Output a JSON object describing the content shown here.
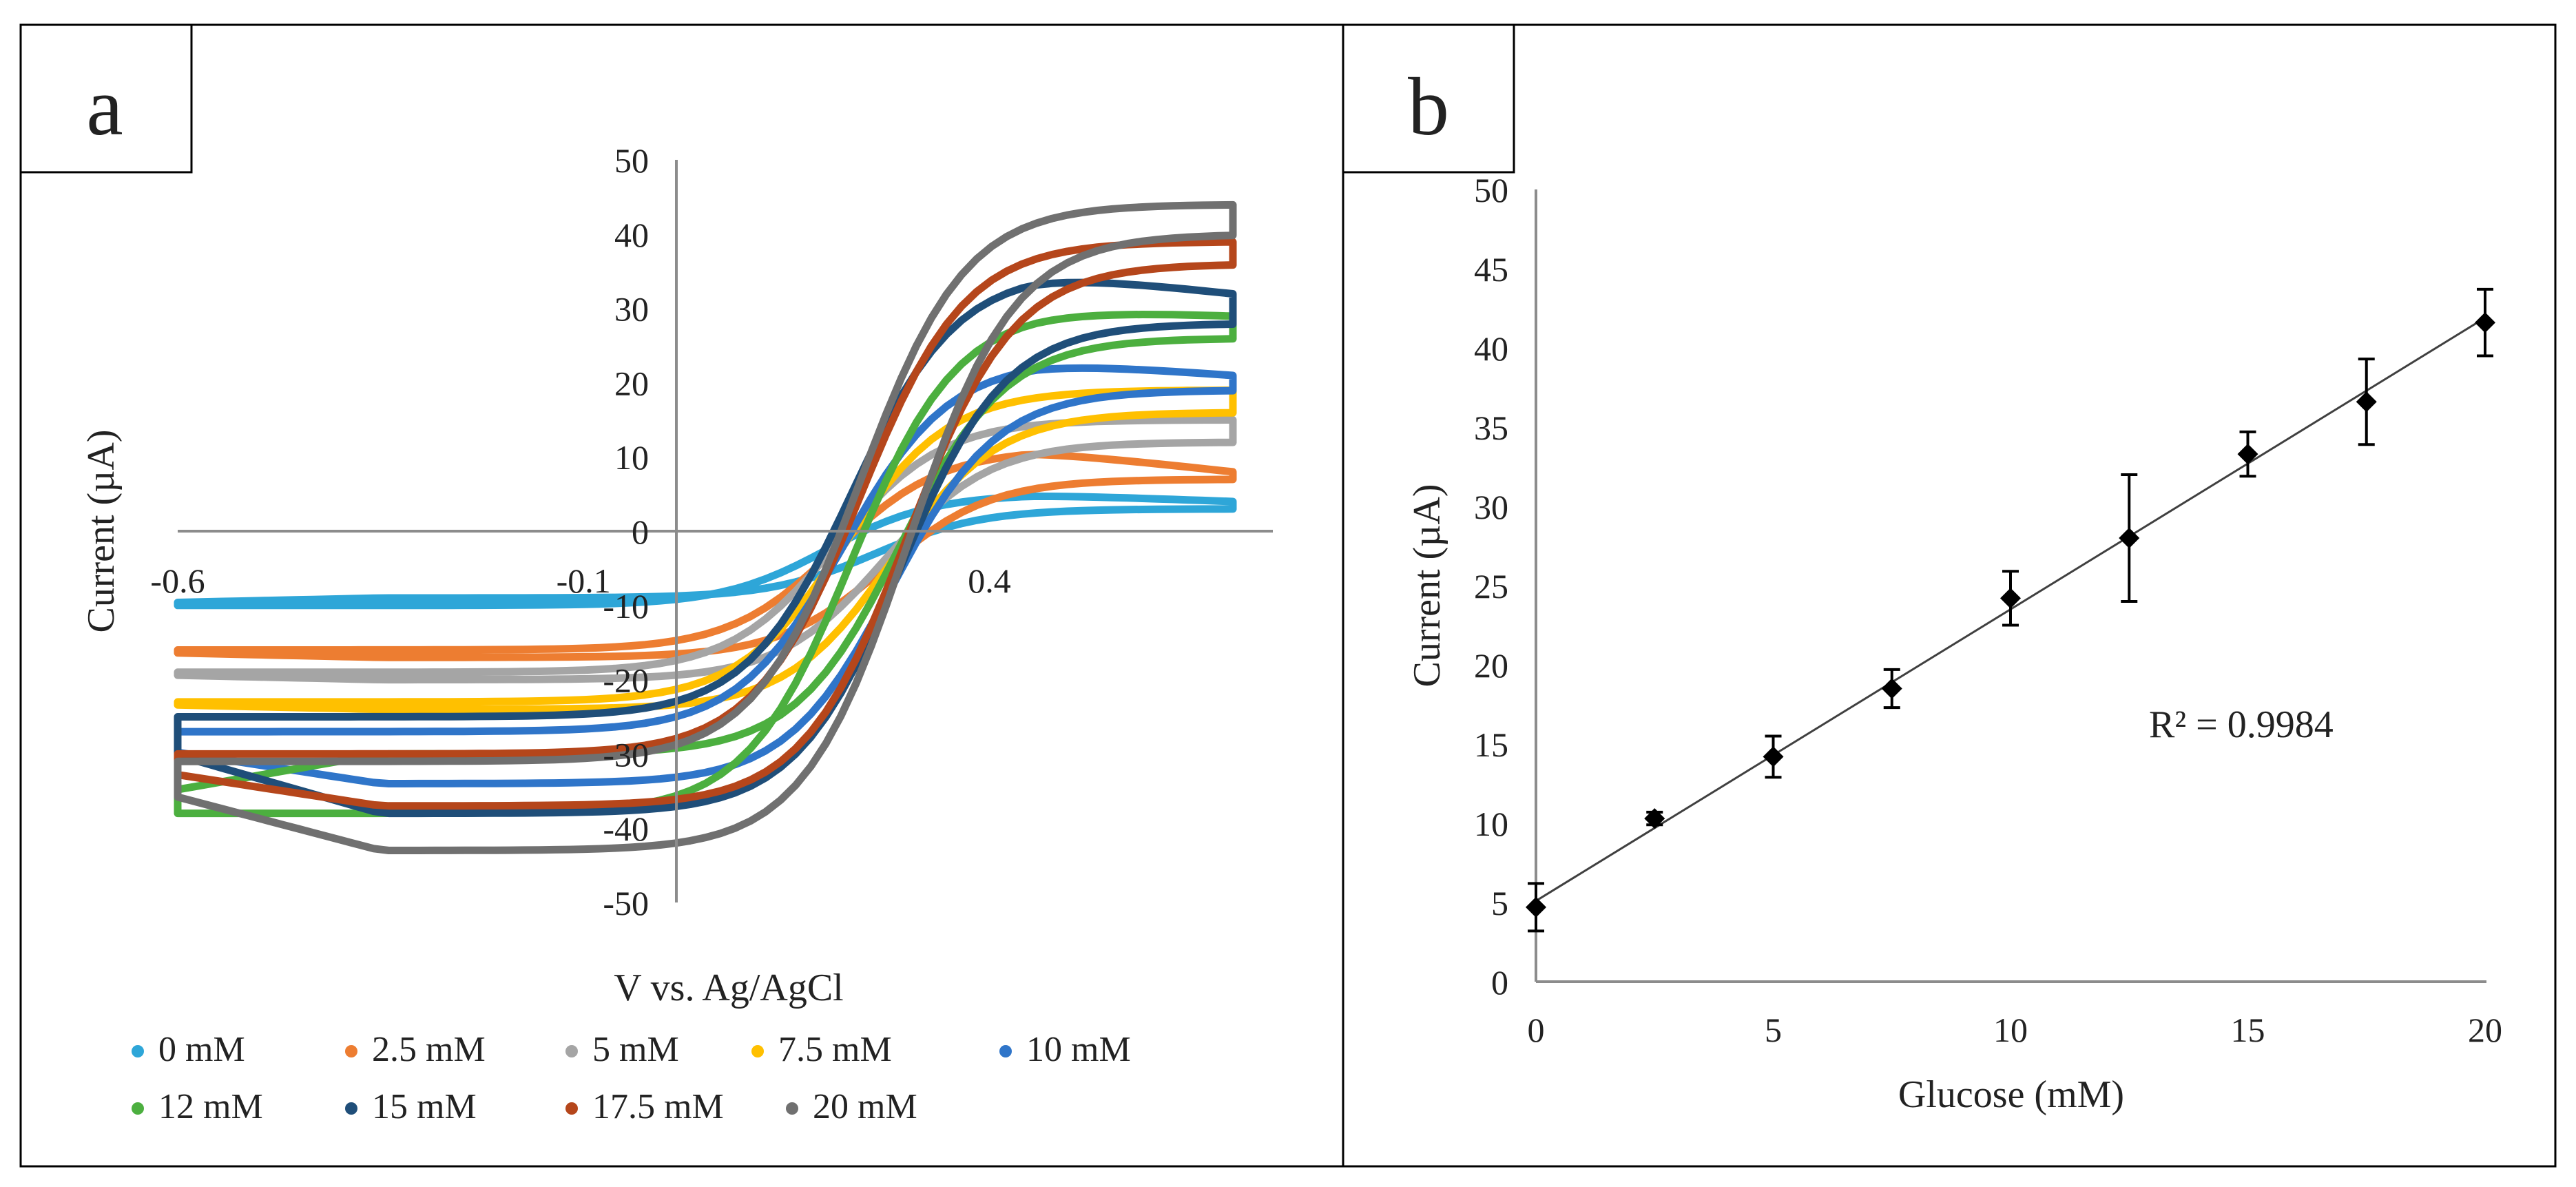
{
  "panels": [
    {
      "label": "a"
    },
    {
      "label": "b"
    }
  ],
  "chart_data": [
    {
      "type": "line",
      "xlabel": "V vs. Ag/AgCl",
      "ylabel": "Current (µA)",
      "xlim": [
        -0.6,
        0.7
      ],
      "ylim": [
        -50,
        50
      ],
      "x_ticks": [
        "-0.6",
        "-0.1",
        "0.4"
      ],
      "y_ticks": [
        "50",
        "40",
        "30",
        "20",
        "10",
        "0",
        "-10",
        "-20",
        "-30",
        "-40",
        "-50"
      ],
      "legend_position": "bottom",
      "series": [
        {
          "name": "0 mM",
          "color": "#2ea6d8",
          "plateau_high": 5,
          "plateau_low": -9,
          "start": -10,
          "end_high": 4,
          "end_low": 3,
          "e_half": 0.18
        },
        {
          "name": "2.5 mM",
          "color": "#ed7d31",
          "plateau_high": 11,
          "plateau_low": -17,
          "start": -16,
          "end_high": 8,
          "end_low": 7,
          "e_half": 0.19
        },
        {
          "name": "5 mM",
          "color": "#a5a5a5",
          "plateau_high": 15,
          "plateau_low": -20,
          "start": -19,
          "end_high": 15,
          "end_low": 12,
          "e_half": 0.19
        },
        {
          "name": "7.5 mM",
          "color": "#ffc000",
          "plateau_high": 19,
          "plateau_low": -24,
          "start": -23,
          "end_high": 19,
          "end_low": 16,
          "e_half": 0.2
        },
        {
          "name": "10 mM",
          "color": "#2f75c9",
          "plateau_high": 23,
          "plateau_low": -34,
          "start": -27,
          "end_high": 21,
          "end_low": 19,
          "e_half": 0.2
        },
        {
          "name": "12 mM",
          "color": "#4caf3f",
          "plateau_high": 30,
          "plateau_low": -30,
          "start": -38,
          "end_high": 29,
          "end_low": 26,
          "e_half": 0.21
        },
        {
          "name": "15 mM",
          "color": "#1f4e79",
          "plateau_high": 35,
          "plateau_low": -38,
          "start": -25,
          "end_high": 32,
          "end_low": 28,
          "e_half": 0.21
        },
        {
          "name": "17.5 mM",
          "color": "#b5461b",
          "plateau_high": 39,
          "plateau_low": -37,
          "start": -30,
          "end_high": 39,
          "end_low": 36,
          "e_half": 0.22
        },
        {
          "name": "20 mM",
          "color": "#707070",
          "plateau_high": 44,
          "plateau_low": -43,
          "start": -31,
          "end_high": 44,
          "end_low": 40,
          "e_half": 0.22
        }
      ]
    },
    {
      "type": "scatter",
      "xlabel": "Glucose (mM)",
      "ylabel": "Current (µA)",
      "xlim": [
        0,
        20
      ],
      "ylim": [
        0,
        50
      ],
      "x_ticks": [
        "0",
        "5",
        "10",
        "15",
        "20"
      ],
      "y_ticks": [
        "0",
        "5",
        "10",
        "15",
        "20",
        "25",
        "30",
        "35",
        "40",
        "45",
        "50"
      ],
      "x": [
        0,
        2.5,
        5,
        7.5,
        10,
        12.5,
        15,
        17.5,
        20
      ],
      "y": [
        4.7,
        10.3,
        14.2,
        18.5,
        24.2,
        28.0,
        33.3,
        36.6,
        41.6
      ],
      "error": [
        1.5,
        0.4,
        1.3,
        1.2,
        1.7,
        4.0,
        1.4,
        2.7,
        2.1
      ],
      "trendline": {
        "intercept": 5.1,
        "slope": 1.84
      },
      "annotation": "R² = 0.9984"
    }
  ]
}
